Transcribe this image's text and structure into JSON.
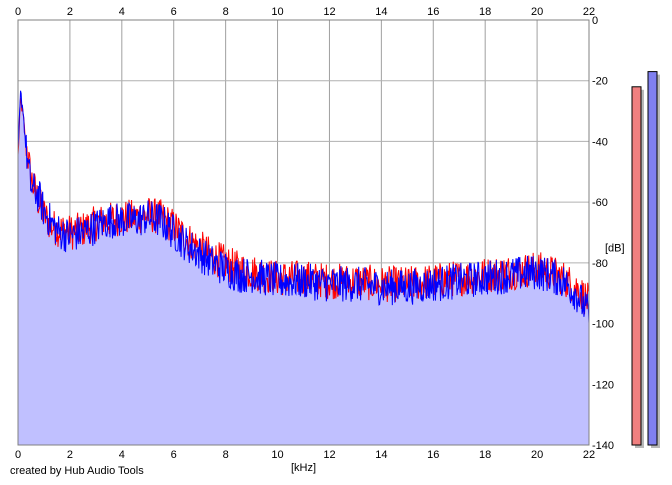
{
  "credit": "created by Hub Audio Tools",
  "chart_data": {
    "type": "area",
    "title": "",
    "xlabel": "[kHz]",
    "ylabel": "[dB]",
    "xlim": [
      0,
      22
    ],
    "ylim": [
      -140,
      0
    ],
    "x_ticks": [
      "0",
      "2",
      "4",
      "6",
      "8",
      "10",
      "12",
      "14",
      "16",
      "18",
      "20",
      "22"
    ],
    "y_ticks": [
      "0",
      "-20",
      "-40",
      "-60",
      "-80",
      "-100",
      "-120",
      "-140"
    ],
    "grid": true,
    "series": [
      {
        "name": "",
        "color": "#ff0000",
        "fill": "#c0c0ff",
        "x": [
          0,
          0.1,
          0.2,
          0.3,
          0.5,
          0.8,
          1.0,
          1.3,
          1.6,
          2.0,
          2.5,
          3.0,
          3.5,
          4.0,
          4.5,
          5.0,
          5.5,
          6.0,
          6.5,
          7.0,
          7.5,
          8.0,
          8.5,
          9.0,
          9.5,
          10.0,
          11.0,
          12.0,
          13.0,
          14.0,
          15.0,
          16.0,
          17.0,
          18.0,
          19.0,
          20.0,
          20.5,
          21.0,
          21.5,
          22.0
        ],
        "y": [
          -45,
          -26,
          -32,
          -40,
          -52,
          -60,
          -64,
          -68,
          -69,
          -70,
          -69,
          -67,
          -66,
          -65,
          -65,
          -64,
          -65,
          -68,
          -72,
          -75,
          -78,
          -80,
          -82,
          -83,
          -84,
          -85,
          -85,
          -86,
          -86,
          -87,
          -87,
          -86,
          -85,
          -84,
          -83,
          -82,
          -83,
          -85,
          -88,
          -93
        ]
      },
      {
        "name": "",
        "color": "#0000ff",
        "fill": "#c0c0ff",
        "x": [
          0,
          0.1,
          0.2,
          0.3,
          0.5,
          0.8,
          1.0,
          1.3,
          1.6,
          2.0,
          2.5,
          3.0,
          3.5,
          4.0,
          4.5,
          5.0,
          5.5,
          6.0,
          6.5,
          7.0,
          7.5,
          8.0,
          8.5,
          9.0,
          9.5,
          10.0,
          11.0,
          12.0,
          13.0,
          14.0,
          15.0,
          16.0,
          17.0,
          18.0,
          19.0,
          20.0,
          20.5,
          21.0,
          21.5,
          22.0
        ],
        "y": [
          -44,
          -24,
          -30,
          -42,
          -55,
          -58,
          -63,
          -67,
          -70,
          -71,
          -70,
          -68,
          -66,
          -66,
          -66,
          -65,
          -66,
          -70,
          -74,
          -77,
          -80,
          -82,
          -84,
          -84,
          -85,
          -86,
          -86,
          -87,
          -87,
          -88,
          -88,
          -87,
          -86,
          -85,
          -84,
          -83,
          -84,
          -86,
          -90,
          -97
        ]
      }
    ],
    "level_meters": [
      {
        "color": "#f08080",
        "value_db": -22
      },
      {
        "color": "#8080f0",
        "value_db": -17
      }
    ]
  }
}
